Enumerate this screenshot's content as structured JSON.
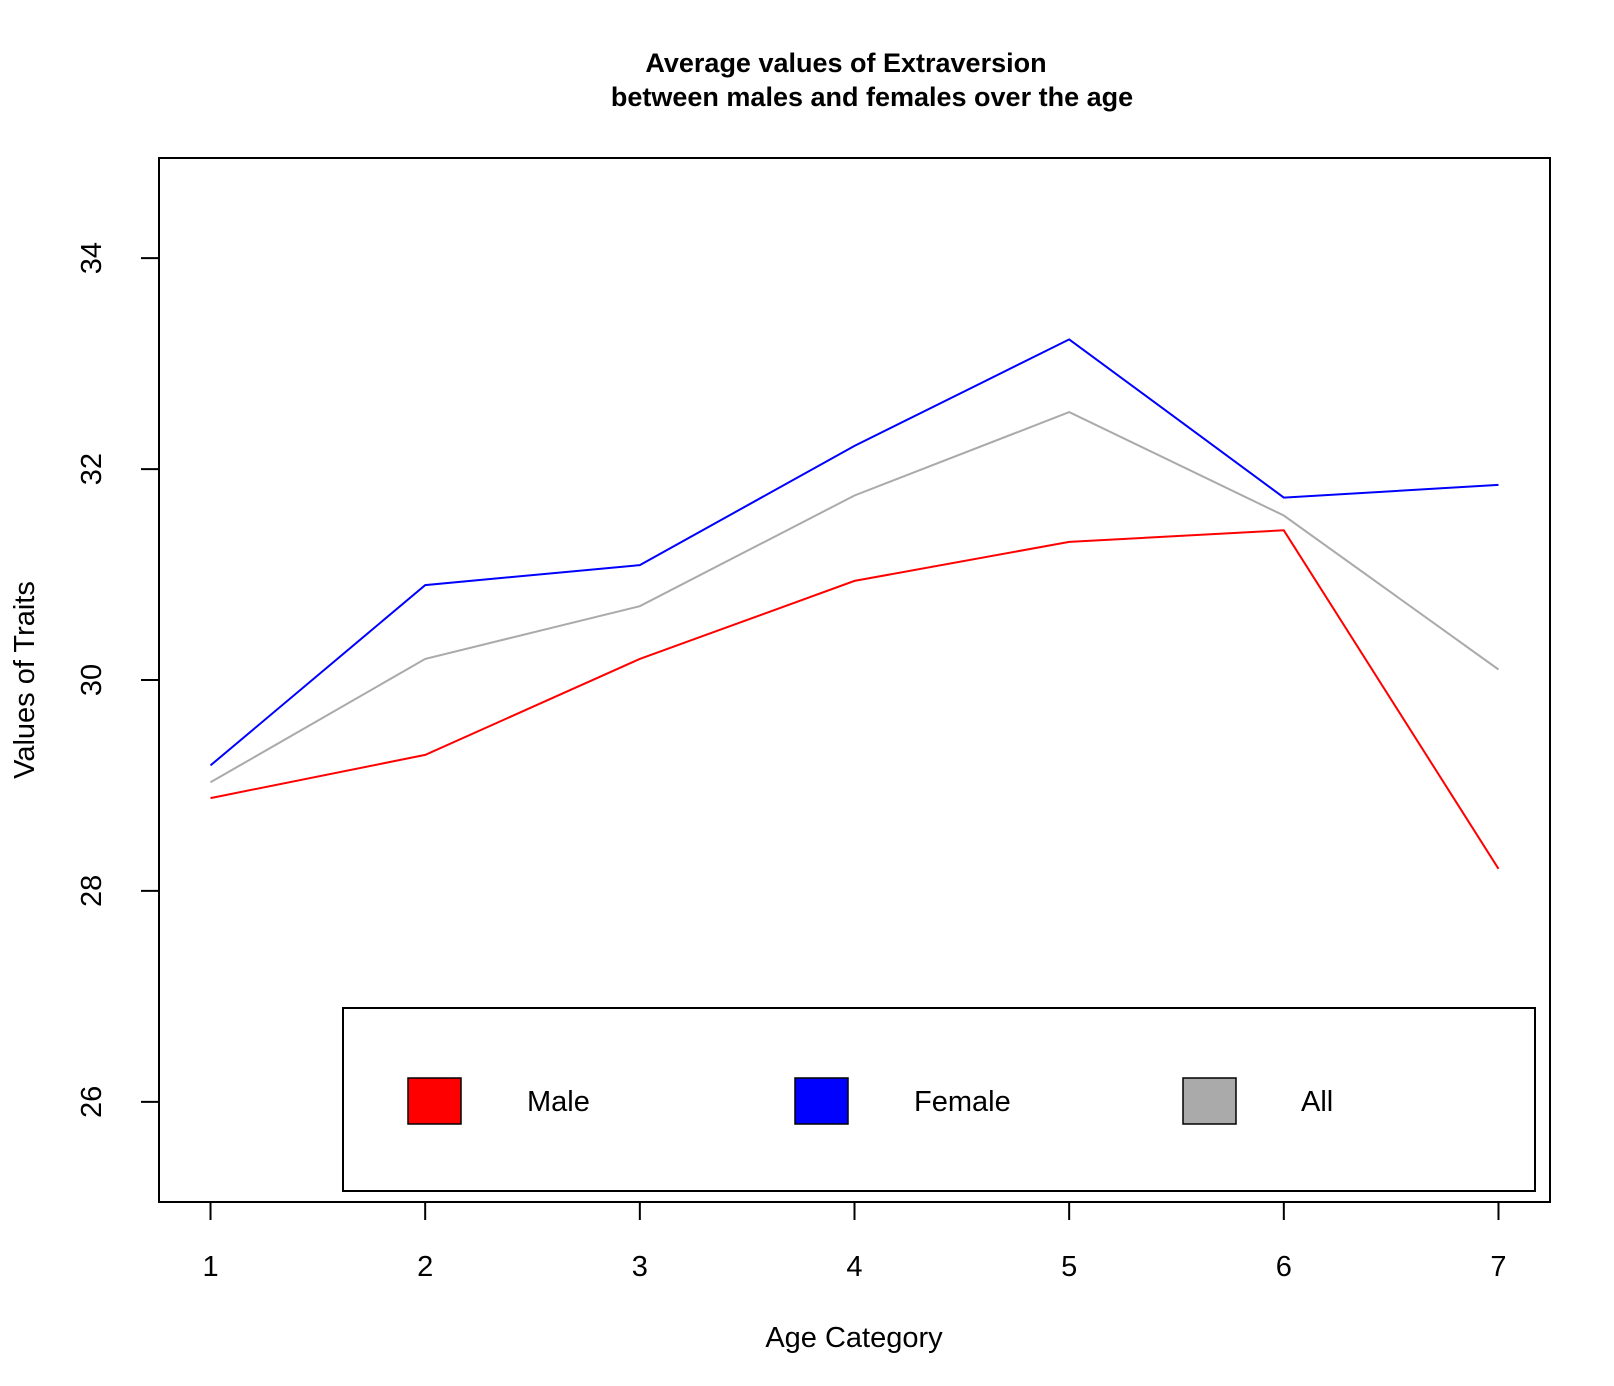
{
  "chart_data": {
    "type": "line",
    "title_line1": "Average values of Extraversion",
    "title_line2": "between males and females over the age",
    "xlabel": "Age Category",
    "ylabel": "Values of Traits",
    "x": [
      1,
      2,
      3,
      4,
      5,
      6,
      7
    ],
    "x_tick_labels": [
      "1",
      "2",
      "3",
      "4",
      "5",
      "6",
      "7"
    ],
    "y_ticks": [
      26,
      28,
      30,
      32,
      34
    ],
    "y_tick_labels": [
      "26",
      "28",
      "30",
      "32",
      "34"
    ],
    "xlim": [
      0.76,
      7.24
    ],
    "ylim": [
      25.05,
      34.95
    ],
    "grid": false,
    "legend_position": "bottom",
    "series": [
      {
        "name": "Male",
        "color": "#ff0000",
        "values": [
          28.88,
          29.29,
          30.2,
          30.94,
          31.31,
          31.42,
          28.21
        ]
      },
      {
        "name": "Female",
        "color": "#0000ff",
        "values": [
          29.19,
          30.9,
          31.09,
          32.22,
          33.23,
          31.73,
          31.85
        ]
      },
      {
        "name": "All",
        "color": "#aaaaaa",
        "values": [
          29.03,
          30.2,
          30.7,
          31.75,
          32.54,
          31.56,
          30.1
        ]
      }
    ]
  }
}
